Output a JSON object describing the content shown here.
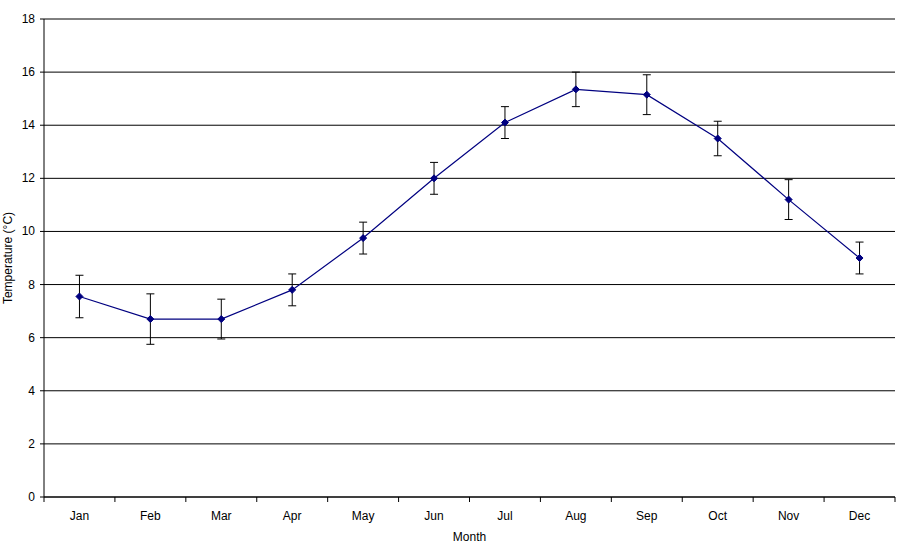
{
  "chart_data": {
    "type": "line",
    "x_label": "Month",
    "y_label": "Temperature (°C)",
    "categories": [
      "Jan",
      "Feb",
      "Mar",
      "Apr",
      "May",
      "Jun",
      "Jul",
      "Aug",
      "Sep",
      "Oct",
      "Nov",
      "Dec"
    ],
    "series": [
      {
        "color": "#000080",
        "marker": "diamond",
        "line_style": "solid",
        "values": [
          7.55,
          6.7,
          6.7,
          7.8,
          9.75,
          12.0,
          14.1,
          15.35,
          15.15,
          13.5,
          11.2,
          9.0
        ],
        "errors": [
          0.8,
          0.95,
          0.75,
          0.6,
          0.6,
          0.6,
          0.6,
          0.65,
          0.75,
          0.65,
          0.75,
          0.6
        ]
      }
    ],
    "ylim": [
      0,
      18
    ],
    "yticks": [
      0,
      2,
      4,
      6,
      8,
      10,
      12,
      14,
      16,
      18
    ],
    "grid": true
  }
}
